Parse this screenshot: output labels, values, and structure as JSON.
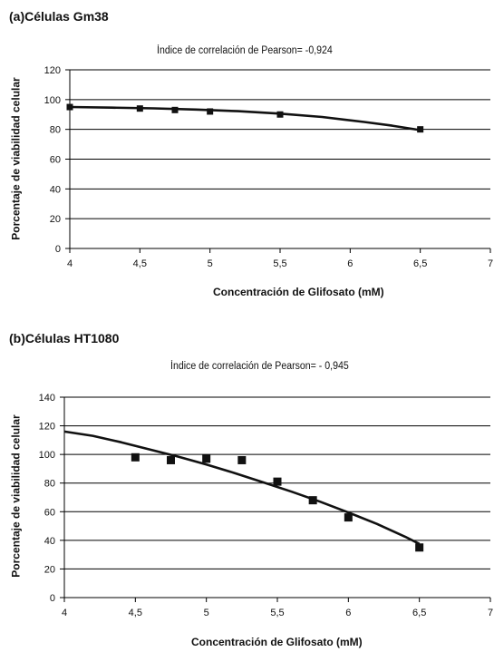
{
  "chart_data": [
    {
      "type": "scatter",
      "panel_title": "(a)Células Gm38",
      "subtitle": "Índice de correlación de Pearson= -0,924",
      "xlabel": "Concentración de Glifosato (mM)",
      "ylabel": "Porcentaje de viabilidad celular",
      "xlim": [
        4,
        7
      ],
      "ylim": [
        0,
        120
      ],
      "xticks": [
        "4",
        "4,5",
        "5",
        "5,5",
        "6",
        "6,5",
        "7"
      ],
      "yticks": [
        "0",
        "20",
        "40",
        "60",
        "80",
        "100",
        "120"
      ],
      "xtick_values": [
        4,
        4.5,
        5,
        5.5,
        6,
        6.5,
        7
      ],
      "ytick_values": [
        0,
        20,
        40,
        60,
        80,
        100,
        120
      ],
      "grid": "horizontal",
      "series": [
        {
          "kind": "points",
          "x": [
            4.0,
            4.5,
            4.75,
            5.0,
            5.5,
            6.5
          ],
          "y": [
            95,
            94,
            93,
            92,
            90,
            80
          ]
        },
        {
          "kind": "trendline",
          "x": [
            4.0,
            4.3,
            4.6,
            4.9,
            5.2,
            5.5,
            5.8,
            6.1,
            6.3,
            6.5
          ],
          "y": [
            95,
            94.6,
            94.1,
            93.3,
            92.2,
            90.6,
            88.3,
            85,
            82.5,
            79.5
          ]
        }
      ]
    },
    {
      "type": "scatter",
      "panel_title": "(b)Células HT1080",
      "subtitle": "Índice de correlación de Pearson= - 0,945",
      "xlabel": "Concentración de Glifosato (mM)",
      "ylabel": "Porcentaje de viabilidad celular",
      "xlim": [
        4,
        7
      ],
      "ylim": [
        0,
        140
      ],
      "xticks": [
        "4",
        "4,5",
        "5",
        "5,5",
        "6",
        "6,5",
        "7"
      ],
      "yticks": [
        "0",
        "20",
        "40",
        "60",
        "80",
        "100",
        "120",
        "140"
      ],
      "xtick_values": [
        4,
        4.5,
        5,
        5.5,
        6,
        6.5,
        7
      ],
      "ytick_values": [
        0,
        20,
        40,
        60,
        80,
        100,
        120,
        140
      ],
      "grid": "horizontal",
      "series": [
        {
          "kind": "points",
          "x": [
            4.5,
            4.75,
            5.0,
            5.25,
            5.5,
            5.75,
            6.0,
            6.5
          ],
          "y": [
            98,
            96,
            97,
            96,
            81,
            68,
            56,
            35
          ]
        },
        {
          "kind": "trendline",
          "x": [
            4.0,
            4.2,
            4.4,
            4.6,
            4.8,
            5.0,
            5.2,
            5.4,
            5.6,
            5.8,
            6.0,
            6.2,
            6.4,
            6.5
          ],
          "y": [
            116,
            113,
            108.5,
            103.5,
            98.5,
            93,
            87,
            80.5,
            74,
            67,
            59.5,
            51.5,
            42.5,
            37.5
          ]
        }
      ]
    }
  ]
}
